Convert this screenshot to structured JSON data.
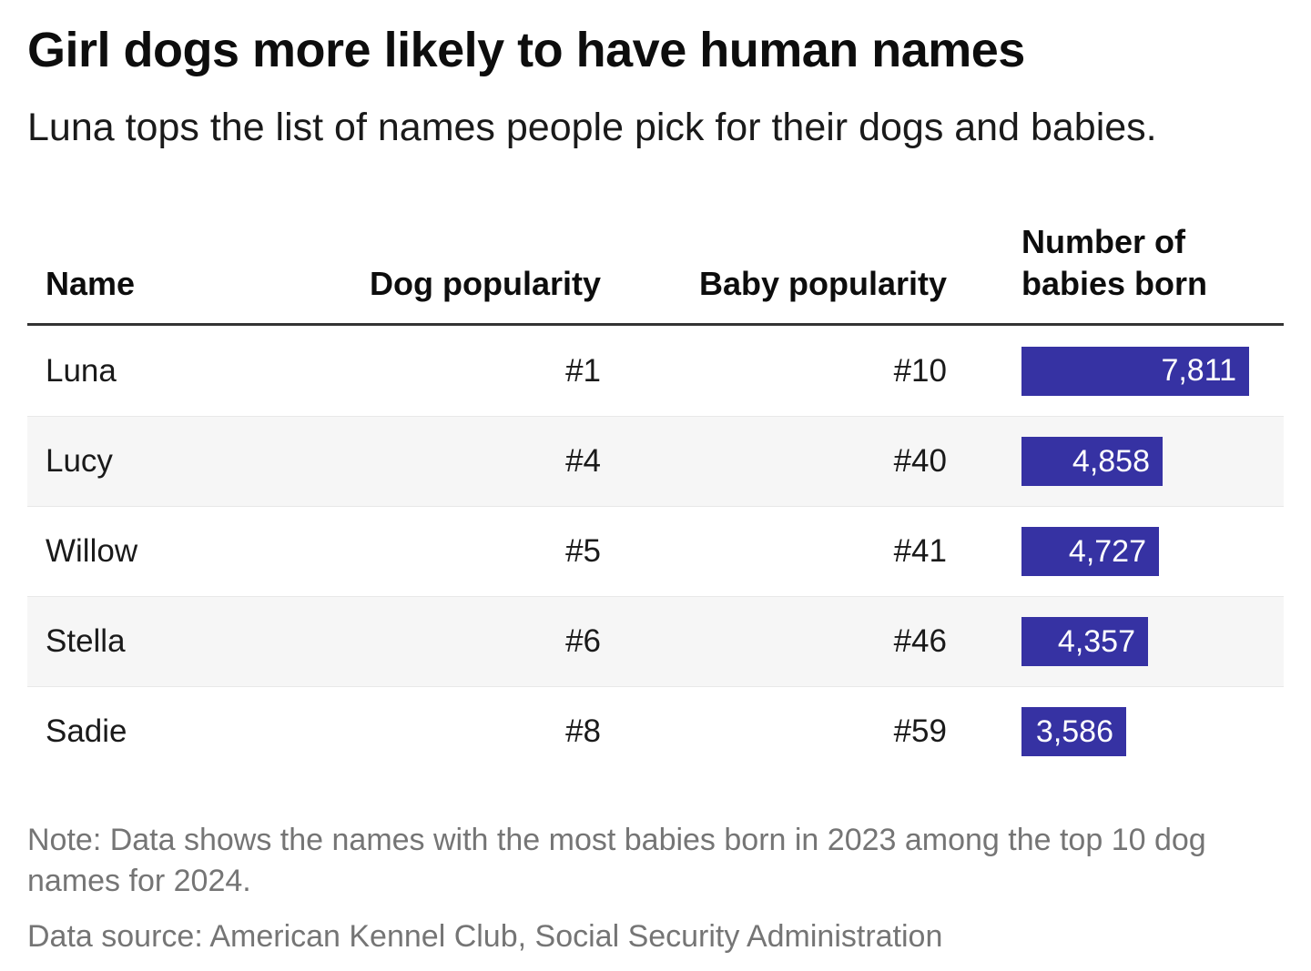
{
  "chart_data": {
    "type": "table",
    "title": "Girl dogs more likely to have human names",
    "subtitle": "Luna tops the list of names people pick for their dogs and babies.",
    "columns": [
      "Name",
      "Dog popularity",
      "Baby popularity",
      "Number of babies born"
    ],
    "categories": [
      "Luna",
      "Lucy",
      "Willow",
      "Stella",
      "Sadie"
    ],
    "rows": [
      {
        "name": "Luna",
        "dog_popularity": "#1",
        "baby_popularity": "#10",
        "babies_born": 7811,
        "babies_born_label": "7,811"
      },
      {
        "name": "Lucy",
        "dog_popularity": "#4",
        "baby_popularity": "#40",
        "babies_born": 4858,
        "babies_born_label": "4,858"
      },
      {
        "name": "Willow",
        "dog_popularity": "#5",
        "baby_popularity": "#41",
        "babies_born": 4727,
        "babies_born_label": "4,727"
      },
      {
        "name": "Stella",
        "dog_popularity": "#6",
        "baby_popularity": "#46",
        "babies_born": 4357,
        "babies_born_label": "4,357"
      },
      {
        "name": "Sadie",
        "dog_popularity": "#8",
        "baby_popularity": "#59",
        "babies_born": 3586,
        "babies_born_label": "3,586"
      }
    ],
    "bar": {
      "color": "#3632a3",
      "label_color": "#ffffff",
      "max_value": 7811
    },
    "note": "Note: Data shows the names with the most babies born in 2023 among the top 10 dog names for 2024.",
    "source": "Data source: American Kennel Club, Social Security Administration"
  }
}
